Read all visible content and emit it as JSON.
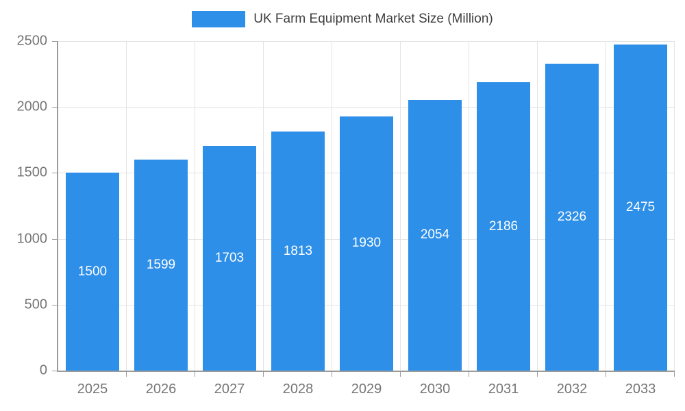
{
  "chart_data": {
    "type": "bar",
    "title": "UK Farm Equipment Market Size (Million)",
    "categories": [
      "2025",
      "2026",
      "2027",
      "2028",
      "2029",
      "2030",
      "2031",
      "2032",
      "2033"
    ],
    "values": [
      1500,
      1599,
      1703,
      1813,
      1930,
      2054,
      2186,
      2326,
      2475
    ],
    "xlabel": "",
    "ylabel": "",
    "ylim": [
      0,
      2500
    ],
    "yticks": [
      0,
      500,
      1000,
      1500,
      2000,
      2500
    ],
    "grid": true,
    "legend_position": "top",
    "bar_color": "#2e8fe8",
    "value_label_color": "#ffffff",
    "axis_text_color": "#757575"
  },
  "legend": {
    "label": "UK Farm Equipment Market Size (Million)"
  }
}
